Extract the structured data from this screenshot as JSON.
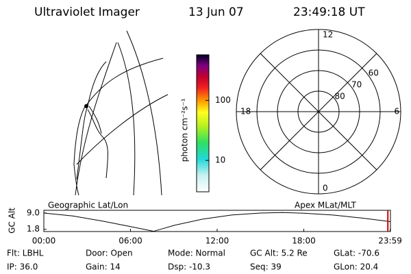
{
  "header": {
    "title": "Ultraviolet Imager",
    "date": "13 Jun 07",
    "time": "23:49:18 UT"
  },
  "colorbar": {
    "label": "photon cm⁻²s⁻¹",
    "log": true,
    "lim": [
      3,
      575
    ],
    "ticks": [
      10,
      100
    ]
  },
  "polar": {
    "lat_min": 50,
    "lat_rings": [
      60,
      70,
      80
    ],
    "mlt_labels": [
      12,
      18,
      0,
      6
    ]
  },
  "timeline": {
    "left_label": "Geographic Lat/Lon",
    "right_label": "Apex MLat/MLT",
    "ylabel": "GC Alt",
    "ylim": [
      0.8,
      10.2
    ],
    "yticks": [
      {
        "value": 9.0,
        "label": "9.0"
      },
      {
        "value": 1.8,
        "label": "1.8"
      }
    ],
    "xlim": [
      0,
      24
    ],
    "xticks": [
      {
        "value": 0,
        "label": "00:00"
      },
      {
        "value": 6,
        "label": "06:00"
      },
      {
        "value": 12,
        "label": "12:00"
      },
      {
        "value": 18,
        "label": "18:00"
      },
      {
        "value": 23.98,
        "label": "23:59"
      }
    ],
    "x": [
      0,
      2,
      4,
      6,
      7.6,
      9,
      11,
      13,
      15,
      16.5,
      18,
      20,
      22,
      23.98
    ],
    "values": [
      9.0,
      7.7,
      5.5,
      3.0,
      0.9,
      3.5,
      6.3,
      8.1,
      9.0,
      9.2,
      8.9,
      8.1,
      6.8,
      5.2
    ],
    "cursor": 23.82,
    "color": "#000000",
    "cursor_color": "#cc0000"
  },
  "footer": {
    "rows": [
      [
        "Flt: LBHL",
        "Door: Open",
        "Mode: Normal",
        "GC Alt: 5.2 Re",
        "GLat: -70.6"
      ],
      [
        "IP: 36.0",
        "Gain: 14",
        "Dsp: -10.3",
        "Seq: 39",
        "GLon: 20.4"
      ]
    ]
  }
}
